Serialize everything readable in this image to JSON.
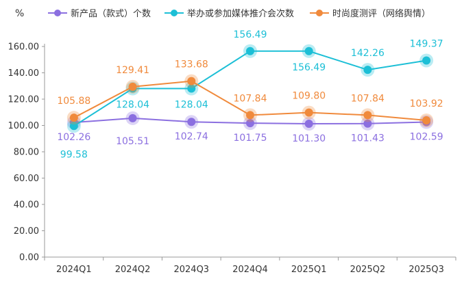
{
  "chart_data": {
    "type": "line",
    "ylabel": "%",
    "ylim": [
      0,
      160
    ],
    "yticks": [
      "0.00",
      "20.00",
      "40.00",
      "60.00",
      "80.00",
      "100.00",
      "120.00",
      "140.00",
      "160.00"
    ],
    "categories": [
      "2024Q1",
      "2024Q2",
      "2024Q3",
      "2024Q4",
      "2025Q1",
      "2025Q2",
      "2025Q3"
    ],
    "legend_position": "top",
    "grid": false,
    "series": [
      {
        "name": "新产品（款式）个数",
        "color": "#8b6fe0",
        "values": [
          102.26,
          105.51,
          102.74,
          101.75,
          101.3,
          101.43,
          102.59
        ],
        "labels": [
          "102.26",
          "105.51",
          "102.74",
          "101.75",
          "101.30",
          "101.43",
          "102.59"
        ]
      },
      {
        "name": "举办或参加媒体推介会次数",
        "color": "#1cbfd6",
        "values": [
          99.58,
          128.04,
          128.04,
          156.49,
          156.49,
          142.26,
          149.37
        ],
        "labels": [
          "99.58",
          "128.04",
          "128.04",
          "156.49",
          "156.49",
          "142.26",
          "149.37"
        ]
      },
      {
        "name": "时尚度测评（网络舆情）",
        "color": "#f08a3c",
        "values": [
          105.88,
          129.41,
          133.68,
          107.84,
          109.8,
          107.84,
          103.92
        ],
        "labels": [
          "105.88",
          "129.41",
          "133.68",
          "107.84",
          "109.80",
          "107.84",
          "103.92"
        ]
      }
    ]
  }
}
